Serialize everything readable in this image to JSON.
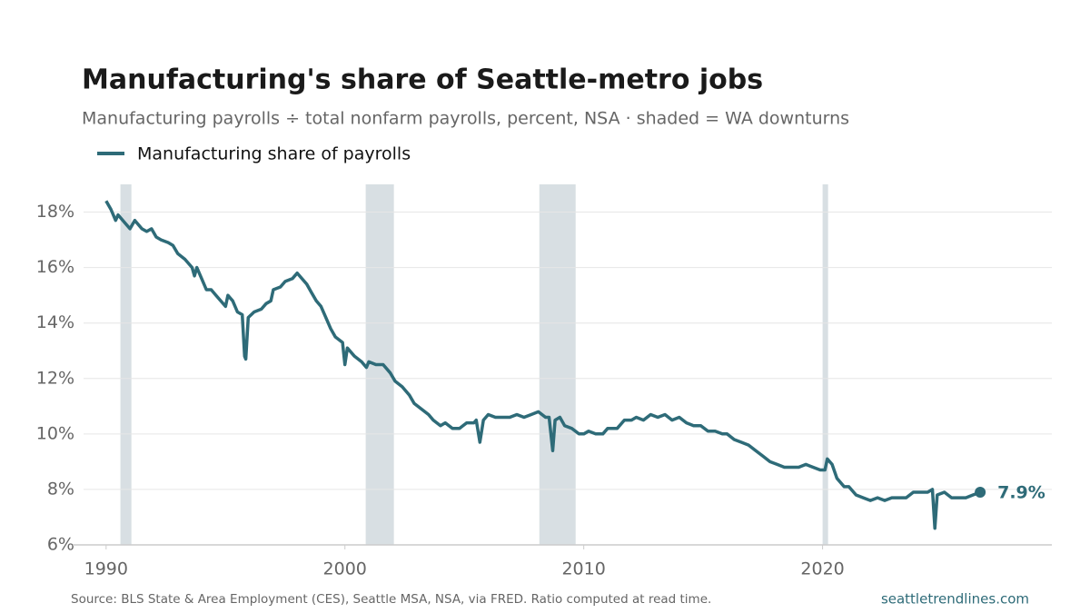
{
  "chart_data": {
    "type": "line",
    "title": "Manufacturing's share of Seattle-metro jobs",
    "subtitle": "Manufacturing payrolls ÷ total nonfarm payrolls, percent, NSA · shaded = WA downturns",
    "source": "Source: BLS State & Area Employment (CES), Seattle MSA, NSA, via FRED. Ratio computed at read time.",
    "site": "seattletrendlines.com",
    "x": [
      1990.0,
      1990.2,
      1990.4,
      1990.5,
      1990.8,
      1991.0,
      1991.2,
      1991.5,
      1991.7,
      1991.9,
      1992.1,
      1992.3,
      1992.6,
      1992.8,
      1993.0,
      1993.3,
      1993.6,
      1993.7,
      1993.8,
      1994.0,
      1994.2,
      1994.4,
      1994.6,
      1994.8,
      1995.0,
      1995.1,
      1995.3,
      1995.5,
      1995.7,
      1995.8,
      1995.85,
      1995.95,
      1996.2,
      1996.5,
      1996.7,
      1996.9,
      1997.0,
      1997.3,
      1997.5,
      1997.8,
      1998.0,
      1998.2,
      1998.4,
      1998.6,
      1998.8,
      1999.0,
      1999.2,
      1999.4,
      1999.6,
      1999.9,
      2000.0,
      2000.1,
      2000.4,
      2000.7,
      2000.9,
      2001.0,
      2001.3,
      2001.6,
      2001.9,
      2002.1,
      2002.4,
      2002.7,
      2002.9,
      2003.2,
      2003.5,
      2003.7,
      2004.0,
      2004.2,
      2004.5,
      2004.8,
      2005.1,
      2005.4,
      2005.5,
      2005.65,
      2005.8,
      2006.0,
      2006.3,
      2006.6,
      2006.9,
      2007.2,
      2007.5,
      2007.8,
      2008.1,
      2008.4,
      2008.55,
      2008.7,
      2008.8,
      2009.0,
      2009.2,
      2009.5,
      2009.8,
      2010.0,
      2010.2,
      2010.5,
      2010.8,
      2011.0,
      2011.4,
      2011.7,
      2012.0,
      2012.2,
      2012.5,
      2012.8,
      2013.1,
      2013.4,
      2013.7,
      2014.0,
      2014.3,
      2014.6,
      2014.9,
      2015.2,
      2015.5,
      2015.8,
      2016.0,
      2016.3,
      2016.6,
      2016.9,
      2017.2,
      2017.5,
      2017.8,
      2018.1,
      2018.4,
      2018.7,
      2019.0,
      2019.3,
      2019.6,
      2019.9,
      2020.1,
      2020.2,
      2020.4,
      2020.6,
      2020.9,
      2021.1,
      2021.4,
      2021.7,
      2022.0,
      2022.3,
      2022.6,
      2022.9,
      2023.2,
      2023.5,
      2023.8,
      2024.1,
      2024.4,
      2024.6,
      2024.7,
      2024.8,
      2025.1,
      2025.4,
      2025.7,
      2026.0,
      2026.3,
      2026.6
    ],
    "series": [
      {
        "name": "Manufacturing share of payrolls",
        "color": "#2e6b78",
        "values": [
          18.4,
          18.1,
          17.7,
          17.9,
          17.6,
          17.4,
          17.7,
          17.4,
          17.3,
          17.4,
          17.1,
          17.0,
          16.9,
          16.8,
          16.5,
          16.3,
          16.0,
          15.7,
          16.0,
          15.6,
          15.2,
          15.2,
          15.0,
          14.8,
          14.6,
          15.0,
          14.8,
          14.4,
          14.3,
          12.8,
          12.7,
          14.2,
          14.4,
          14.5,
          14.7,
          14.8,
          15.2,
          15.3,
          15.5,
          15.6,
          15.8,
          15.6,
          15.4,
          15.1,
          14.8,
          14.6,
          14.2,
          13.8,
          13.5,
          13.3,
          12.5,
          13.1,
          12.8,
          12.6,
          12.4,
          12.6,
          12.5,
          12.5,
          12.2,
          11.9,
          11.7,
          11.4,
          11.1,
          10.9,
          10.7,
          10.5,
          10.3,
          10.4,
          10.2,
          10.2,
          10.4,
          10.4,
          10.5,
          9.7,
          10.5,
          10.7,
          10.6,
          10.6,
          10.6,
          10.7,
          10.6,
          10.7,
          10.8,
          10.6,
          10.6,
          9.4,
          10.5,
          10.6,
          10.3,
          10.2,
          10.0,
          10.0,
          10.1,
          10.0,
          10.0,
          10.2,
          10.2,
          10.5,
          10.5,
          10.6,
          10.5,
          10.7,
          10.6,
          10.7,
          10.5,
          10.6,
          10.4,
          10.3,
          10.3,
          10.1,
          10.1,
          10.0,
          10.0,
          9.8,
          9.7,
          9.6,
          9.4,
          9.2,
          9.0,
          8.9,
          8.8,
          8.8,
          8.8,
          8.9,
          8.8,
          8.7,
          8.7,
          9.1,
          8.9,
          8.4,
          8.1,
          8.1,
          7.8,
          7.7,
          7.6,
          7.7,
          7.6,
          7.7,
          7.7,
          7.7,
          7.9,
          7.9,
          7.9,
          8.0,
          6.6,
          7.8,
          7.9,
          7.7,
          7.7,
          7.7,
          7.8,
          7.9
        ]
      }
    ],
    "annotations": [
      {
        "x": 2026.6,
        "value": 7.9,
        "label": "7.9%"
      }
    ],
    "shaded": [
      [
        1990.6,
        1991.06
      ],
      [
        2000.87,
        2002.05
      ],
      [
        2008.14,
        2009.66
      ],
      [
        2020.0,
        2020.23
      ]
    ],
    "shade_color": "#d8dfe3",
    "xlim": [
      1988.6,
      2029.6
    ],
    "xticks": [
      1990,
      2000,
      2010,
      2020
    ],
    "ylim": [
      6,
      19
    ],
    "yticks": [
      {
        "value": 6,
        "label": "6%"
      },
      {
        "value": 8,
        "label": "8%"
      },
      {
        "value": 10,
        "label": "10%"
      },
      {
        "value": 12,
        "label": "12%"
      },
      {
        "value": 14,
        "label": "14%"
      },
      {
        "value": 16,
        "label": "16%"
      },
      {
        "value": 18,
        "label": "18%"
      }
    ],
    "grid": true,
    "legend": "top-left"
  }
}
